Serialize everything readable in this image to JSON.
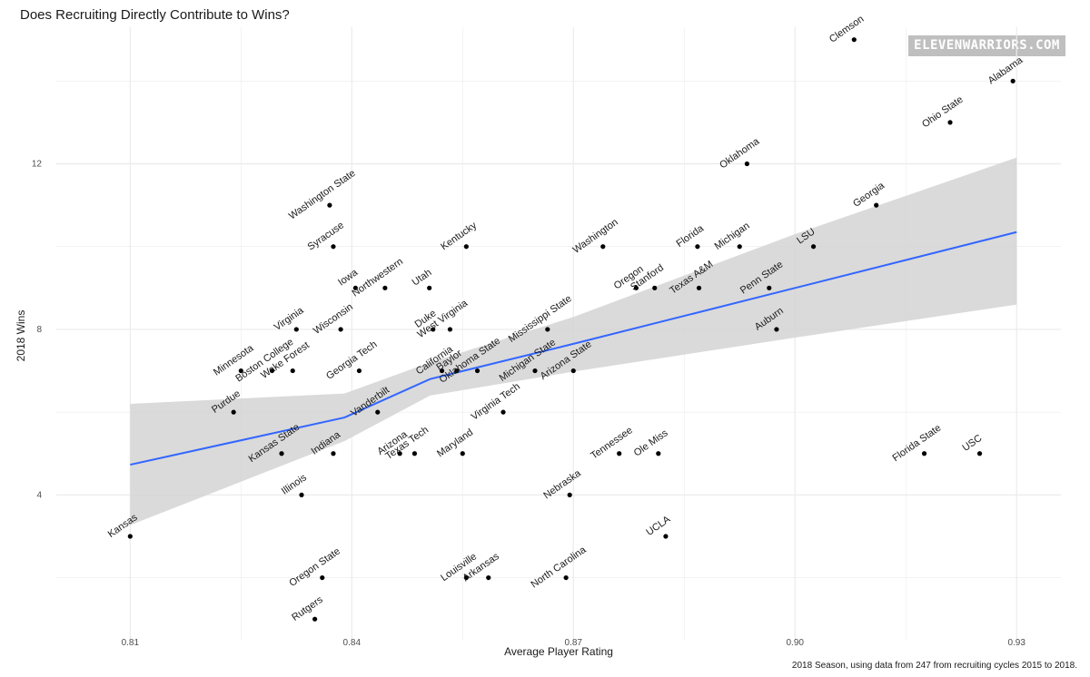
{
  "title": "Does Recruiting Directly Contribute to Wins?",
  "watermark": "ELEVENWARRIORS.COM",
  "caption": "2018 Season, using data from 247 from recruiting cycles 2015 to 2018.",
  "colors": {
    "point": "#000000",
    "fit_line": "#3366ff",
    "confidence_band": "#d3d3d3",
    "grid": "#ebebeb"
  },
  "chart_data": {
    "type": "scatter",
    "xlabel": "Average Player Rating",
    "ylabel": "2018 Wins",
    "xlim": [
      0.8,
      0.936
    ],
    "ylim": [
      0.5,
      15.3
    ],
    "x_ticks": [
      0.81,
      0.84,
      0.87,
      0.9,
      0.93
    ],
    "x_tick_labels": [
      "0.81",
      "0.84",
      "0.87",
      "0.90",
      "0.93"
    ],
    "y_ticks": [
      4,
      8,
      12
    ],
    "y_tick_labels": [
      "4",
      "8",
      "12"
    ],
    "grid": true,
    "legend": "none",
    "fit": {
      "x": [
        0.81,
        0.839,
        0.8506,
        0.87,
        0.9,
        0.93
      ],
      "y": [
        4.73,
        5.87,
        6.8,
        7.65,
        9.0,
        10.35
      ],
      "lower": [
        3.27,
        5.3,
        6.4,
        6.98,
        7.8,
        8.6
      ],
      "upper": [
        6.2,
        6.45,
        7.2,
        8.3,
        10.3,
        12.15
      ]
    },
    "points": [
      {
        "name": "Clemson",
        "x": 0.908,
        "y": 15
      },
      {
        "name": "Alabama",
        "x": 0.9295,
        "y": 14
      },
      {
        "name": "Ohio State",
        "x": 0.921,
        "y": 13
      },
      {
        "name": "Oklahoma",
        "x": 0.8935,
        "y": 12
      },
      {
        "name": "Georgia",
        "x": 0.911,
        "y": 11
      },
      {
        "name": "Washington State",
        "x": 0.837,
        "y": 11
      },
      {
        "name": "Syracuse",
        "x": 0.8375,
        "y": 10
      },
      {
        "name": "Kentucky",
        "x": 0.8555,
        "y": 10
      },
      {
        "name": "Washington",
        "x": 0.874,
        "y": 10
      },
      {
        "name": "Florida",
        "x": 0.8868,
        "y": 10
      },
      {
        "name": "Michigan",
        "x": 0.8925,
        "y": 10
      },
      {
        "name": "LSU",
        "x": 0.9025,
        "y": 10
      },
      {
        "name": "Iowa",
        "x": 0.8405,
        "y": 9
      },
      {
        "name": "Northwestern",
        "x": 0.8445,
        "y": 9
      },
      {
        "name": "Utah",
        "x": 0.8505,
        "y": 9
      },
      {
        "name": "Oregon",
        "x": 0.8785,
        "y": 9
      },
      {
        "name": "Stanford",
        "x": 0.881,
        "y": 9
      },
      {
        "name": "Texas A&M",
        "x": 0.887,
        "y": 9
      },
      {
        "name": "Penn State",
        "x": 0.8965,
        "y": 9
      },
      {
        "name": "Virginia",
        "x": 0.8325,
        "y": 8
      },
      {
        "name": "Wisconsin",
        "x": 0.8385,
        "y": 8
      },
      {
        "name": "Duke",
        "x": 0.851,
        "y": 8
      },
      {
        "name": "West Virginia",
        "x": 0.8533,
        "y": 8
      },
      {
        "name": "Mississippi State",
        "x": 0.8665,
        "y": 8
      },
      {
        "name": "Auburn",
        "x": 0.8975,
        "y": 8
      },
      {
        "name": "Minnesota",
        "x": 0.825,
        "y": 7
      },
      {
        "name": "Boston College",
        "x": 0.8292,
        "y": 7
      },
      {
        "name": "Wake Forest",
        "x": 0.832,
        "y": 7
      },
      {
        "name": "Georgia Tech",
        "x": 0.841,
        "y": 7
      },
      {
        "name": "California",
        "x": 0.8522,
        "y": 7
      },
      {
        "name": "Baylor",
        "x": 0.8542,
        "y": 7
      },
      {
        "name": "Oklahoma State",
        "x": 0.857,
        "y": 7
      },
      {
        "name": "Michigan State",
        "x": 0.8648,
        "y": 7
      },
      {
        "name": "Arizona State",
        "x": 0.87,
        "y": 7
      },
      {
        "name": "Purdue",
        "x": 0.824,
        "y": 6
      },
      {
        "name": "Vanderbilt",
        "x": 0.8435,
        "y": 6
      },
      {
        "name": "Virginia Tech",
        "x": 0.8605,
        "y": 6
      },
      {
        "name": "Kansas State",
        "x": 0.8305,
        "y": 5
      },
      {
        "name": "Indiana",
        "x": 0.8375,
        "y": 5
      },
      {
        "name": "Arizona",
        "x": 0.8465,
        "y": 5
      },
      {
        "name": "Texas Tech",
        "x": 0.8485,
        "y": 5
      },
      {
        "name": "Maryland",
        "x": 0.855,
        "y": 5
      },
      {
        "name": "Tennessee",
        "x": 0.8762,
        "y": 5
      },
      {
        "name": "Ole Miss",
        "x": 0.8815,
        "y": 5
      },
      {
        "name": "Florida State",
        "x": 0.9175,
        "y": 5
      },
      {
        "name": "USC",
        "x": 0.925,
        "y": 5
      },
      {
        "name": "Illinois",
        "x": 0.8332,
        "y": 4
      },
      {
        "name": "Nebraska",
        "x": 0.8695,
        "y": 4
      },
      {
        "name": "Kansas",
        "x": 0.81,
        "y": 3
      },
      {
        "name": "UCLA",
        "x": 0.8825,
        "y": 3
      },
      {
        "name": "Oregon State",
        "x": 0.836,
        "y": 2
      },
      {
        "name": "Louisville",
        "x": 0.8555,
        "y": 2
      },
      {
        "name": "Arkansas",
        "x": 0.8585,
        "y": 2
      },
      {
        "name": "North Carolina",
        "x": 0.869,
        "y": 2
      },
      {
        "name": "Rutgers",
        "x": 0.835,
        "y": 1
      }
    ]
  }
}
